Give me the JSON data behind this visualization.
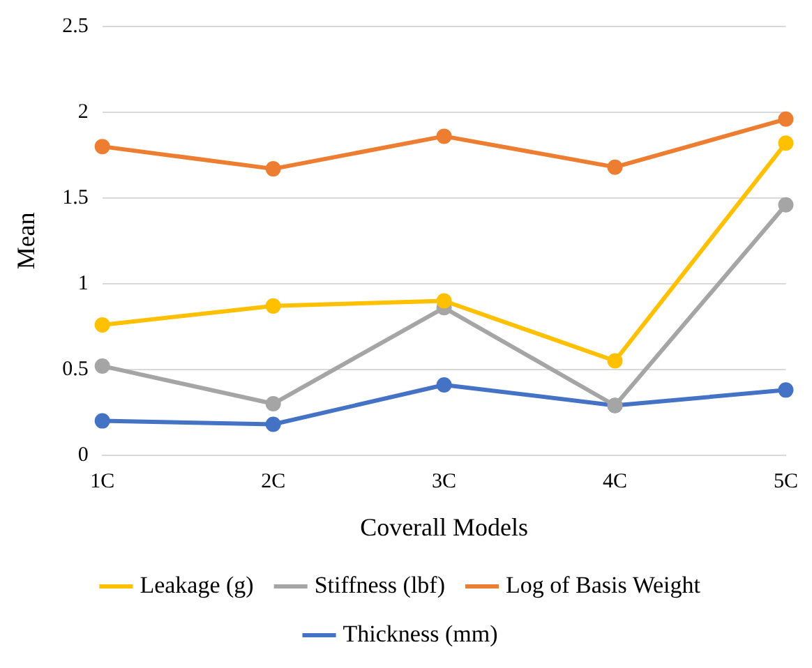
{
  "chart_data": {
    "type": "line",
    "xlabel": "Coverall Models",
    "ylabel": "Mean",
    "categories": [
      "1C",
      "2C",
      "3C",
      "4C",
      "5C"
    ],
    "series": [
      {
        "name": "Thickness (mm)",
        "color": "#4472c4",
        "values": [
          0.2,
          0.18,
          0.41,
          0.29,
          0.38
        ]
      },
      {
        "name": "Log of Basis Weight",
        "color": "#ed7d31",
        "values": [
          1.8,
          1.67,
          1.86,
          1.68,
          1.96
        ]
      },
      {
        "name": "Stiffness (lbf)",
        "color": "#a5a5a5",
        "values": [
          0.52,
          0.3,
          0.86,
          0.29,
          1.46
        ]
      },
      {
        "name": "Leakage (g)",
        "color": "#ffc000",
        "values": [
          0.76,
          0.87,
          0.9,
          0.55,
          1.82
        ]
      }
    ],
    "ylim": [
      0,
      2.5
    ],
    "yticks": [
      0,
      0.5,
      1,
      1.5,
      2,
      2.5
    ],
    "grid": "y",
    "legend": "bottom",
    "marker": "circle",
    "line_style": "solid"
  }
}
